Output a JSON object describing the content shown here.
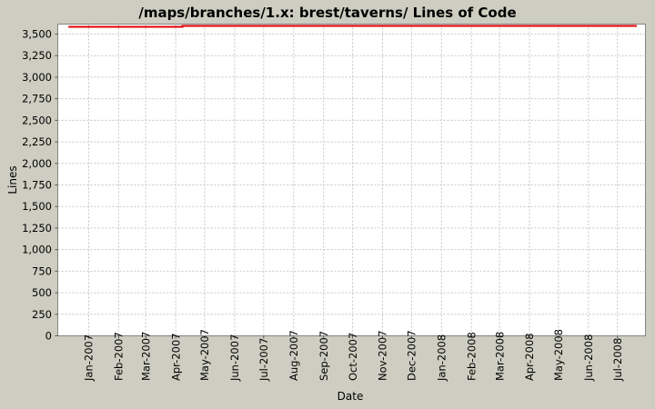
{
  "chart_data": {
    "type": "line",
    "title": "/maps/branches/1.x: brest/taverns/ Lines of Code",
    "xlabel": "Date",
    "ylabel": "Lines",
    "grid": true,
    "legend": "none",
    "x_axis": {
      "kind": "time",
      "range": [
        "2006-11-30",
        "2008-07-30"
      ],
      "tick_labels": [
        "Jan-2007",
        "Feb-2007",
        "Mar-2007",
        "Apr-2007",
        "May-2007",
        "Jun-2007",
        "Jul-2007",
        "Aug-2007",
        "Sep-2007",
        "Oct-2007",
        "Nov-2007",
        "Dec-2007",
        "Jan-2008",
        "Feb-2008",
        "Mar-2008",
        "Apr-2008",
        "May-2008",
        "Jun-2008",
        "Jul-2008"
      ]
    },
    "y_axis": {
      "ylim": [
        0,
        3616
      ],
      "tick_values": [
        0,
        250,
        500,
        750,
        1000,
        1250,
        1500,
        1750,
        2000,
        2250,
        2500,
        2750,
        3000,
        3250,
        3500
      ],
      "tick_labels": [
        "0",
        "250",
        "500",
        "750",
        "1,000",
        "1,250",
        "1,500",
        "1,750",
        "2,000",
        "2,250",
        "2,500",
        "2,750",
        "3,000",
        "3,250",
        "3,500"
      ]
    },
    "series": [
      {
        "name": "Lines of Code",
        "color": "#e00000",
        "points": [
          {
            "x": "2006-12-11",
            "y": 3585
          },
          {
            "x": "2007-04-08",
            "y": 3585
          },
          {
            "x": "2007-04-08",
            "y": 3595
          },
          {
            "x": "2008-07-21",
            "y": 3595
          }
        ]
      }
    ],
    "colors": {
      "background": "#cdcdc1",
      "plot_background": "#ffffff",
      "gridline": "#c6c6c6",
      "plot_border": "#848484",
      "tick_mark": "#555555",
      "text": "#000000"
    }
  }
}
